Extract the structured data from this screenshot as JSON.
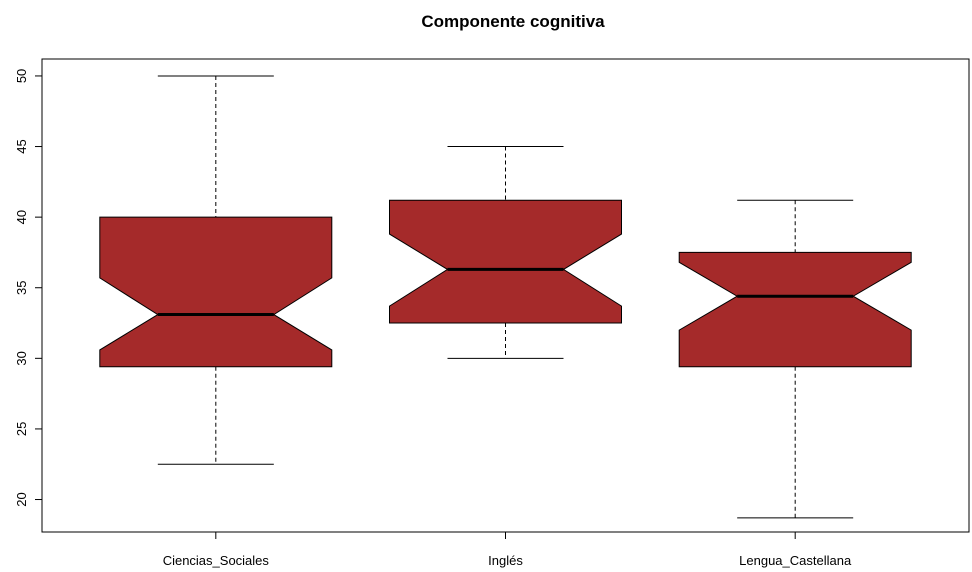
{
  "chart_data": {
    "type": "boxplot",
    "title": "Componente cognitiva",
    "xlabel": "",
    "ylabel": "",
    "notched": true,
    "box_color": "#a52a2a",
    "ylim": [
      17.7,
      51.2
    ],
    "yticks": [
      20,
      25,
      30,
      35,
      40,
      45,
      50
    ],
    "categories": [
      "Ciencias_Sociales",
      "Inglés",
      "Lengua_Castellana"
    ],
    "boxes": [
      {
        "category": "Ciencias_Sociales",
        "whisker_low": 22.5,
        "q1": 29.4,
        "median": 33.1,
        "q3": 40.0,
        "whisker_high": 50.0,
        "notch_low": 30.6,
        "notch_high": 35.7
      },
      {
        "category": "Inglés",
        "whisker_low": 30.0,
        "q1": 32.5,
        "median": 36.3,
        "q3": 41.2,
        "whisker_high": 45.0,
        "notch_low": 33.7,
        "notch_high": 38.8
      },
      {
        "category": "Lengua_Castellana",
        "whisker_low": 18.7,
        "q1": 29.4,
        "median": 34.4,
        "q3": 37.5,
        "whisker_high": 41.2,
        "notch_low": 32.0,
        "notch_high": 36.8
      }
    ]
  }
}
